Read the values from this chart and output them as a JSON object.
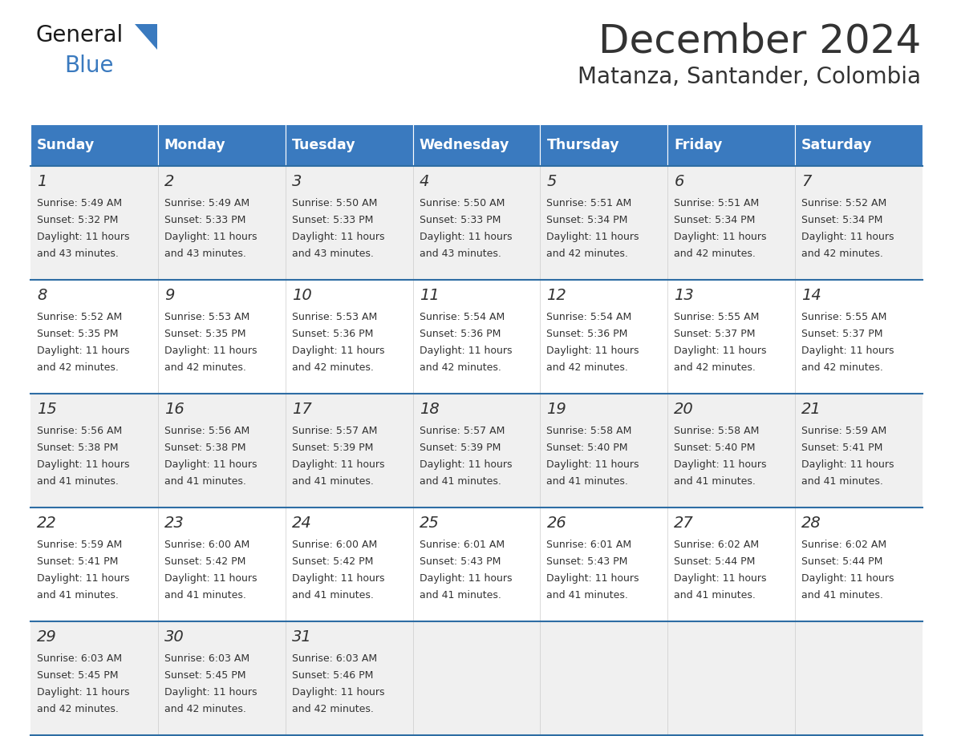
{
  "title": "December 2024",
  "subtitle": "Matanza, Santander, Colombia",
  "header_color": "#3a7abf",
  "header_text_color": "#ffffff",
  "days_of_week": [
    "Sunday",
    "Monday",
    "Tuesday",
    "Wednesday",
    "Thursday",
    "Friday",
    "Saturday"
  ],
  "bg_color": "#ffffff",
  "cell_bg_even": "#f0f0f0",
  "cell_bg_odd": "#ffffff",
  "row_line_color": "#2e6da4",
  "text_color": "#333333",
  "calendar_data": [
    [
      {
        "day": 1,
        "sunrise": "5:49 AM",
        "sunset": "5:32 PM",
        "daylight": "11 hours and 43 minutes."
      },
      {
        "day": 2,
        "sunrise": "5:49 AM",
        "sunset": "5:33 PM",
        "daylight": "11 hours and 43 minutes."
      },
      {
        "day": 3,
        "sunrise": "5:50 AM",
        "sunset": "5:33 PM",
        "daylight": "11 hours and 43 minutes."
      },
      {
        "day": 4,
        "sunrise": "5:50 AM",
        "sunset": "5:33 PM",
        "daylight": "11 hours and 43 minutes."
      },
      {
        "day": 5,
        "sunrise": "5:51 AM",
        "sunset": "5:34 PM",
        "daylight": "11 hours and 42 minutes."
      },
      {
        "day": 6,
        "sunrise": "5:51 AM",
        "sunset": "5:34 PM",
        "daylight": "11 hours and 42 minutes."
      },
      {
        "day": 7,
        "sunrise": "5:52 AM",
        "sunset": "5:34 PM",
        "daylight": "11 hours and 42 minutes."
      }
    ],
    [
      {
        "day": 8,
        "sunrise": "5:52 AM",
        "sunset": "5:35 PM",
        "daylight": "11 hours and 42 minutes."
      },
      {
        "day": 9,
        "sunrise": "5:53 AM",
        "sunset": "5:35 PM",
        "daylight": "11 hours and 42 minutes."
      },
      {
        "day": 10,
        "sunrise": "5:53 AM",
        "sunset": "5:36 PM",
        "daylight": "11 hours and 42 minutes."
      },
      {
        "day": 11,
        "sunrise": "5:54 AM",
        "sunset": "5:36 PM",
        "daylight": "11 hours and 42 minutes."
      },
      {
        "day": 12,
        "sunrise": "5:54 AM",
        "sunset": "5:36 PM",
        "daylight": "11 hours and 42 minutes."
      },
      {
        "day": 13,
        "sunrise": "5:55 AM",
        "sunset": "5:37 PM",
        "daylight": "11 hours and 42 minutes."
      },
      {
        "day": 14,
        "sunrise": "5:55 AM",
        "sunset": "5:37 PM",
        "daylight": "11 hours and 42 minutes."
      }
    ],
    [
      {
        "day": 15,
        "sunrise": "5:56 AM",
        "sunset": "5:38 PM",
        "daylight": "11 hours and 41 minutes."
      },
      {
        "day": 16,
        "sunrise": "5:56 AM",
        "sunset": "5:38 PM",
        "daylight": "11 hours and 41 minutes."
      },
      {
        "day": 17,
        "sunrise": "5:57 AM",
        "sunset": "5:39 PM",
        "daylight": "11 hours and 41 minutes."
      },
      {
        "day": 18,
        "sunrise": "5:57 AM",
        "sunset": "5:39 PM",
        "daylight": "11 hours and 41 minutes."
      },
      {
        "day": 19,
        "sunrise": "5:58 AM",
        "sunset": "5:40 PM",
        "daylight": "11 hours and 41 minutes."
      },
      {
        "day": 20,
        "sunrise": "5:58 AM",
        "sunset": "5:40 PM",
        "daylight": "11 hours and 41 minutes."
      },
      {
        "day": 21,
        "sunrise": "5:59 AM",
        "sunset": "5:41 PM",
        "daylight": "11 hours and 41 minutes."
      }
    ],
    [
      {
        "day": 22,
        "sunrise": "5:59 AM",
        "sunset": "5:41 PM",
        "daylight": "11 hours and 41 minutes."
      },
      {
        "day": 23,
        "sunrise": "6:00 AM",
        "sunset": "5:42 PM",
        "daylight": "11 hours and 41 minutes."
      },
      {
        "day": 24,
        "sunrise": "6:00 AM",
        "sunset": "5:42 PM",
        "daylight": "11 hours and 41 minutes."
      },
      {
        "day": 25,
        "sunrise": "6:01 AM",
        "sunset": "5:43 PM",
        "daylight": "11 hours and 41 minutes."
      },
      {
        "day": 26,
        "sunrise": "6:01 AM",
        "sunset": "5:43 PM",
        "daylight": "11 hours and 41 minutes."
      },
      {
        "day": 27,
        "sunrise": "6:02 AM",
        "sunset": "5:44 PM",
        "daylight": "11 hours and 41 minutes."
      },
      {
        "day": 28,
        "sunrise": "6:02 AM",
        "sunset": "5:44 PM",
        "daylight": "11 hours and 41 minutes."
      }
    ],
    [
      {
        "day": 29,
        "sunrise": "6:03 AM",
        "sunset": "5:45 PM",
        "daylight": "11 hours and 42 minutes."
      },
      {
        "day": 30,
        "sunrise": "6:03 AM",
        "sunset": "5:45 PM",
        "daylight": "11 hours and 42 minutes."
      },
      {
        "day": 31,
        "sunrise": "6:03 AM",
        "sunset": "5:46 PM",
        "daylight": "11 hours and 42 minutes."
      },
      null,
      null,
      null,
      null
    ]
  ],
  "logo_general_color": "#1a1a1a",
  "logo_blue_color": "#3a7abf",
  "figsize": [
    11.88,
    9.18
  ],
  "dpi": 100
}
